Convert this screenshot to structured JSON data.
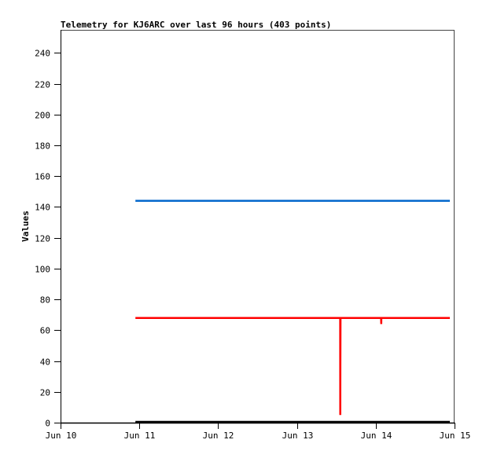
{
  "chart_data": {
    "type": "line",
    "title": "Telemetry for KJ6ARC over last 96 hours (403 points)",
    "xlabel": "",
    "ylabel": "Values",
    "x_ticks": [
      "Jun 10",
      "Jun 11",
      "Jun 12",
      "Jun 13",
      "Jun 14",
      "Jun 15"
    ],
    "y_ticks": [
      0,
      20,
      40,
      60,
      80,
      100,
      120,
      140,
      160,
      180,
      200,
      220,
      240
    ],
    "xlim": [
      "Jun 10 00:00",
      "Jun 15 00:00"
    ],
    "ylim": [
      0,
      255
    ],
    "grid": false,
    "legend": "none",
    "series": [
      {
        "color": "#0066cc",
        "points": [
          [
            "Jun 10 22:48",
            144
          ],
          [
            "Jun 14 22:34",
            144
          ]
        ]
      },
      {
        "color": "#ff0000",
        "points": [
          [
            "Jun 10 22:48",
            68
          ],
          [
            "Jun 13 13:10",
            68
          ],
          [
            "Jun 13 13:12",
            5
          ],
          [
            "Jun 13 13:14",
            37
          ],
          [
            "Jun 13 13:16",
            68
          ],
          [
            "Jun 14 01:38",
            68
          ],
          [
            "Jun 14 01:40",
            64
          ],
          [
            "Jun 14 01:42",
            68
          ],
          [
            "Jun 14 22:34",
            68
          ]
        ]
      },
      {
        "color": "#000000",
        "points": [
          [
            "Jun 10 22:48",
            0.5
          ],
          [
            "Jun 14 22:34",
            0.5
          ]
        ]
      }
    ]
  }
}
